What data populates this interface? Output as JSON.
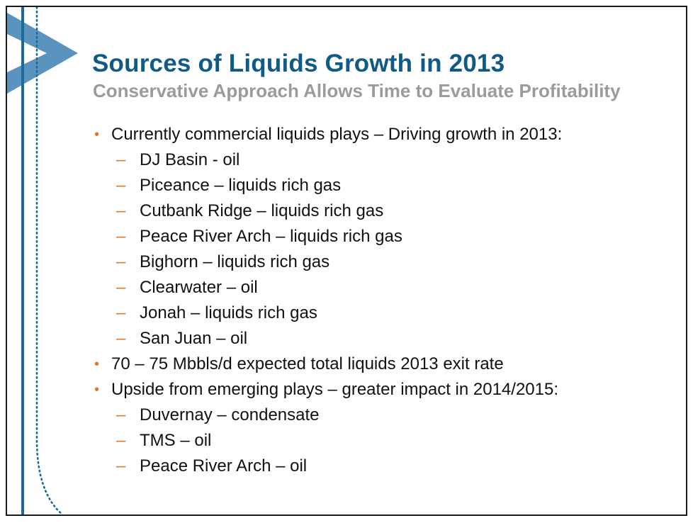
{
  "slide": {
    "title": "Sources of Liquids Growth in 2013",
    "subtitle": "Conservative Approach Allows Time to Evaluate Profitability",
    "bullet_symbol": "•",
    "dash_symbol": "–",
    "colors": {
      "title": "#0f5a86",
      "subtitle": "#9b9b9b",
      "bullet": "#e07a2f",
      "body_text": "#111111",
      "accent_blue": "#5b93bf",
      "vertical_line": "#1a6a9a"
    }
  },
  "bullets": [
    {
      "text": "Currently commercial liquids plays – Driving growth in 2013:",
      "sub": [
        "DJ Basin - oil",
        "Piceance – liquids rich gas",
        "Cutbank Ridge – liquids rich gas",
        "Peace River Arch – liquids rich gas",
        "Bighorn – liquids rich gas",
        "Clearwater – oil",
        "Jonah – liquids rich gas",
        "San Juan – oil"
      ]
    },
    {
      "text": "70 – 75 Mbbls/d expected total liquids 2013 exit rate",
      "sub": []
    },
    {
      "text": "Upside from emerging plays – greater impact in 2014/2015:",
      "sub": [
        "Duvernay – condensate",
        "TMS – oil",
        "Peace River Arch – oil"
      ]
    }
  ]
}
